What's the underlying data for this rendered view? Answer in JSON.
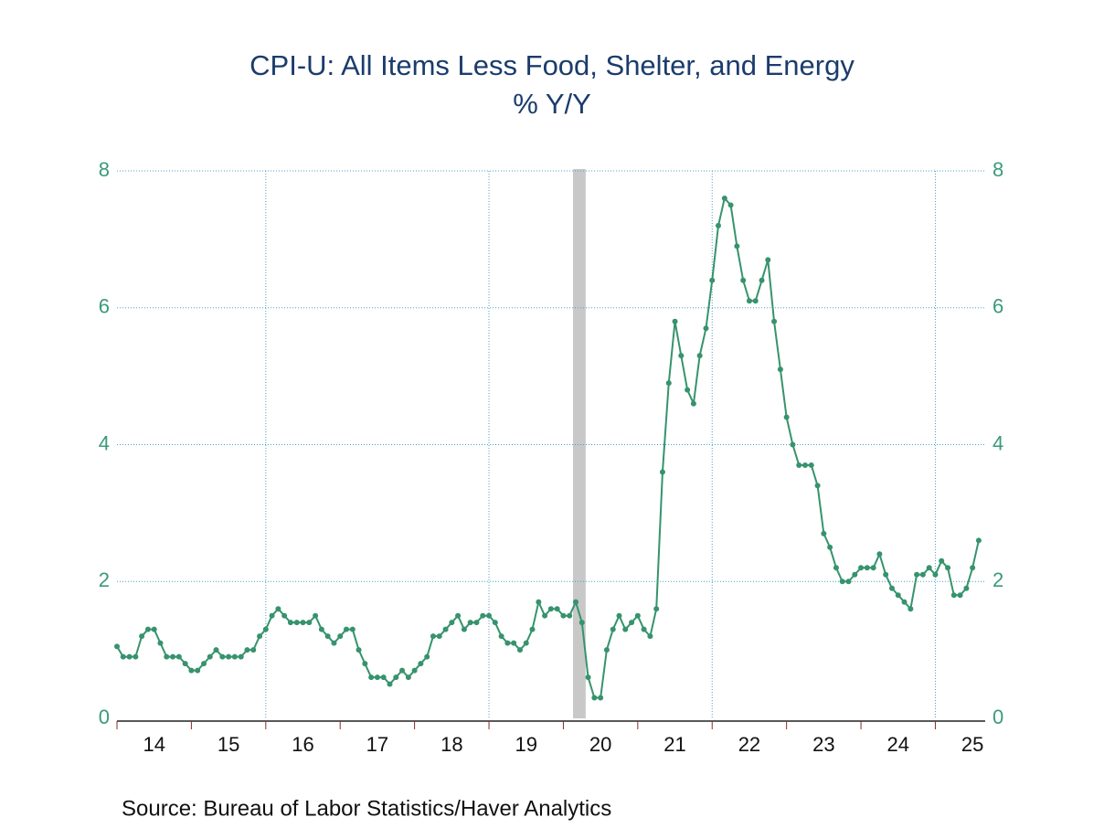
{
  "chart_data": {
    "type": "line",
    "title": "CPI-U: All Items Less Food, Shelter, and Energy",
    "subtitle": "% Y/Y",
    "source": "Source:  Bureau of Labor Statistics/Haver Analytics",
    "color": "#36936d",
    "markers": true,
    "mirror_y_axis": true,
    "grid": true,
    "xlim": [
      2014,
      2025.67
    ],
    "ylim": [
      0,
      8
    ],
    "yticks": [
      0,
      2,
      4,
      6,
      8
    ],
    "xticks": [
      2014,
      2015,
      2016,
      2017,
      2018,
      2019,
      2020,
      2021,
      2022,
      2023,
      2024,
      2025
    ],
    "xgrid_ticks": [
      2016,
      2019,
      2022,
      2025
    ],
    "xtick_labels": [
      {
        "value": 2014.5,
        "label": "14"
      },
      {
        "value": 2015.5,
        "label": "15"
      },
      {
        "value": 2016.5,
        "label": "16"
      },
      {
        "value": 2017.5,
        "label": "17"
      },
      {
        "value": 2018.5,
        "label": "18"
      },
      {
        "value": 2019.5,
        "label": "19"
      },
      {
        "value": 2020.5,
        "label": "20"
      },
      {
        "value": 2021.5,
        "label": "21"
      },
      {
        "value": 2022.5,
        "label": "22"
      },
      {
        "value": 2023.5,
        "label": "23"
      },
      {
        "value": 2024.5,
        "label": "24"
      },
      {
        "value": 2025.5,
        "label": "25"
      }
    ],
    "recession": {
      "start": 2020.13,
      "end": 2020.3
    },
    "x": [
      2014,
      2014.083,
      2014.167,
      2014.25,
      2014.333,
      2014.417,
      2014.5,
      2014.583,
      2014.667,
      2014.75,
      2014.833,
      2014.917,
      2015,
      2015.083,
      2015.167,
      2015.25,
      2015.333,
      2015.417,
      2015.5,
      2015.583,
      2015.667,
      2015.75,
      2015.833,
      2015.917,
      2016,
      2016.083,
      2016.167,
      2016.25,
      2016.333,
      2016.417,
      2016.5,
      2016.583,
      2016.667,
      2016.75,
      2016.833,
      2016.917,
      2017,
      2017.083,
      2017.167,
      2017.25,
      2017.333,
      2017.417,
      2017.5,
      2017.583,
      2017.667,
      2017.75,
      2017.833,
      2017.917,
      2018,
      2018.083,
      2018.167,
      2018.25,
      2018.333,
      2018.417,
      2018.5,
      2018.583,
      2018.667,
      2018.75,
      2018.833,
      2018.917,
      2019,
      2019.083,
      2019.167,
      2019.25,
      2019.333,
      2019.417,
      2019.5,
      2019.583,
      2019.667,
      2019.75,
      2019.833,
      2019.917,
      2020,
      2020.083,
      2020.167,
      2020.25,
      2020.333,
      2020.417,
      2020.5,
      2020.583,
      2020.667,
      2020.75,
      2020.833,
      2020.917,
      2021,
      2021.083,
      2021.167,
      2021.25,
      2021.333,
      2021.417,
      2021.5,
      2021.583,
      2021.667,
      2021.75,
      2021.833,
      2021.917,
      2022,
      2022.083,
      2022.167,
      2022.25,
      2022.333,
      2022.417,
      2022.5,
      2022.583,
      2022.667,
      2022.75,
      2022.833,
      2022.917,
      2023,
      2023.083,
      2023.167,
      2023.25,
      2023.333,
      2023.417,
      2023.5,
      2023.583,
      2023.667,
      2023.75,
      2023.833,
      2023.917,
      2024,
      2024.083,
      2024.167,
      2024.25,
      2024.333,
      2024.417,
      2024.5,
      2024.583,
      2024.667,
      2024.75,
      2024.833,
      2024.917,
      2025,
      2025.083,
      2025.167,
      2025.25,
      2025.333,
      2025.417,
      2025.5,
      2025.583
    ],
    "values": [
      1.05,
      0.9,
      0.9,
      0.9,
      1.2,
      1.3,
      1.3,
      1.1,
      0.9,
      0.9,
      0.9,
      0.8,
      0.7,
      0.7,
      0.8,
      0.9,
      1.0,
      0.9,
      0.9,
      0.9,
      0.9,
      1.0,
      1.0,
      1.2,
      1.3,
      1.5,
      1.6,
      1.5,
      1.4,
      1.4,
      1.4,
      1.4,
      1.5,
      1.3,
      1.2,
      1.1,
      1.2,
      1.3,
      1.3,
      1.0,
      0.8,
      0.6,
      0.6,
      0.6,
      0.5,
      0.6,
      0.7,
      0.6,
      0.7,
      0.8,
      0.9,
      1.2,
      1.2,
      1.3,
      1.4,
      1.5,
      1.3,
      1.4,
      1.4,
      1.5,
      1.5,
      1.4,
      1.2,
      1.1,
      1.1,
      1.0,
      1.1,
      1.3,
      1.7,
      1.5,
      1.6,
      1.6,
      1.5,
      1.5,
      1.7,
      1.4,
      0.6,
      0.3,
      0.3,
      1.0,
      1.3,
      1.5,
      1.3,
      1.4,
      1.5,
      1.3,
      1.2,
      1.6,
      3.6,
      4.9,
      5.8,
      5.3,
      4.8,
      4.6,
      5.3,
      5.7,
      6.4,
      7.2,
      7.6,
      7.5,
      6.9,
      6.4,
      6.1,
      6.1,
      6.4,
      6.7,
      5.8,
      5.1,
      4.4,
      4.0,
      3.7,
      3.7,
      3.7,
      3.4,
      2.7,
      2.5,
      2.2,
      2.0,
      2.0,
      2.1,
      2.2,
      2.2,
      2.2,
      2.4,
      2.1,
      1.9,
      1.8,
      1.7,
      1.6,
      2.1,
      2.1,
      2.2,
      2.1,
      2.3,
      2.2,
      1.8,
      1.8,
      1.9,
      2.2,
      2.6
    ]
  }
}
